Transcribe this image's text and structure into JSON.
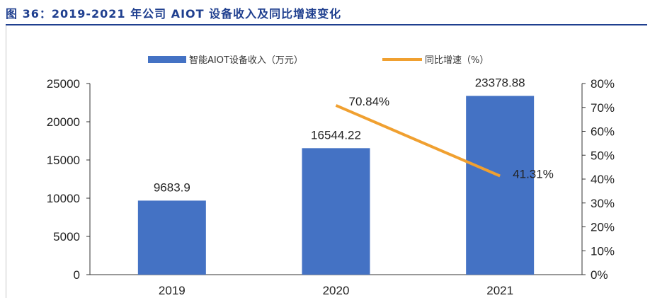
{
  "figure": {
    "title": "图 36：2019-2021 年公司 AIOT 设备收入及同比增速变化",
    "title_color": "#1f3f8f"
  },
  "chart_data": {
    "type": "bar",
    "categories": [
      "2019",
      "2020",
      "2021"
    ],
    "series": [
      {
        "name": "智能AIOT设备收入（万元）",
        "type": "bar",
        "axis": "left",
        "values": [
          9683.9,
          16544.22,
          23378.88
        ],
        "labels": [
          "9683.9",
          "16544.22",
          "23378.88"
        ],
        "color": "#4472c4"
      },
      {
        "name": "同比增速（%）",
        "type": "line",
        "axis": "right",
        "values": [
          null,
          70.84,
          41.31
        ],
        "labels": [
          "",
          "70.84%",
          "41.31%"
        ],
        "color": "#f0a030"
      }
    ],
    "y_left": {
      "range": [
        0,
        25000
      ],
      "ticks": [
        0,
        5000,
        10000,
        15000,
        20000,
        25000
      ],
      "tick_labels": [
        "0",
        "5000",
        "10000",
        "15000",
        "20000",
        "25000"
      ]
    },
    "y_right": {
      "range": [
        0,
        80
      ],
      "ticks": [
        0,
        10,
        20,
        30,
        40,
        50,
        60,
        70,
        80
      ],
      "tick_labels": [
        "0%",
        "10%",
        "20%",
        "30%",
        "40%",
        "50%",
        "60%",
        "70%",
        "80%"
      ]
    },
    "grid": false,
    "legend": "top-center"
  }
}
